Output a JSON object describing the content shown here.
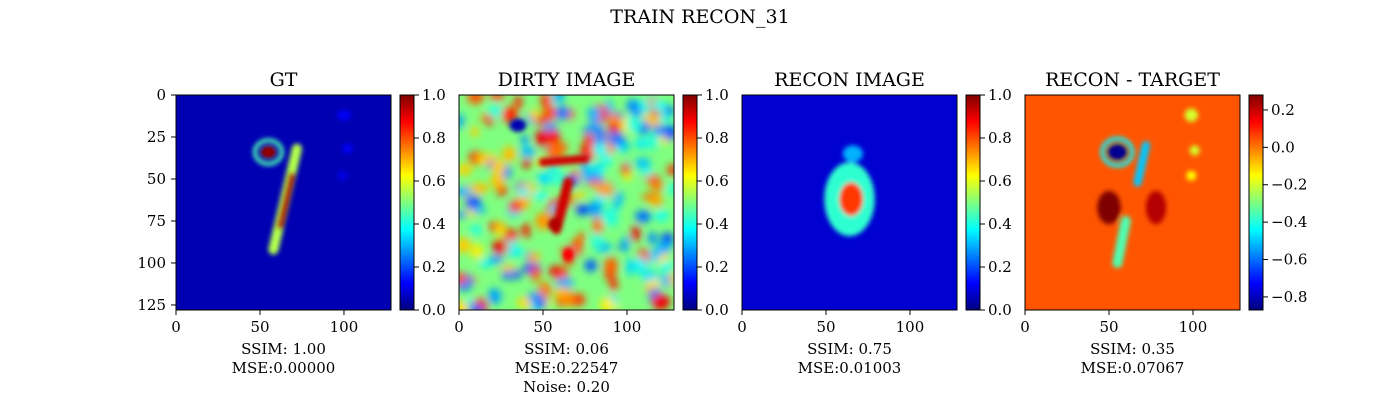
{
  "suptitle": "TRAIN RECON_31",
  "colormap": "jet",
  "jet_stops": [
    "#00007f",
    "#0000ff",
    "#007fff",
    "#00ffff",
    "#7fff7f",
    "#ffff00",
    "#ff7f00",
    "#ff0000",
    "#7f0000"
  ],
  "chart_data": [
    {
      "type": "heatmap",
      "title": "GT",
      "image_shape": [
        128,
        128
      ],
      "xlim": [
        0,
        128
      ],
      "ylim": [
        128,
        0
      ],
      "xticks": [
        0,
        50,
        100
      ],
      "yticks": [
        0,
        25,
        50,
        75,
        100,
        125
      ],
      "show_yticks": true,
      "colorbar": {
        "min": 0.0,
        "max": 1.0,
        "ticks": [
          "0.0",
          "0.2",
          "0.4",
          "0.6",
          "0.8",
          "1.0"
        ],
        "tick_values": [
          0,
          0.2,
          0.4,
          0.6,
          0.8,
          1.0
        ]
      },
      "background_value": 0.05,
      "features": [
        {
          "kind": "blob",
          "cx": 55,
          "cy": 34,
          "rx": 4.5,
          "ry": 3.5,
          "value": 0.98
        },
        {
          "kind": "ring",
          "cx": 55,
          "cy": 34,
          "rx": 8,
          "ry": 7,
          "value": 0.45
        },
        {
          "kind": "stroke",
          "x1": 72,
          "y1": 32,
          "x2": 58,
          "y2": 92,
          "width": 6,
          "value": 0.55
        },
        {
          "kind": "stroke",
          "x1": 69,
          "y1": 48,
          "x2": 62,
          "y2": 78,
          "width": 4,
          "value": 0.95
        },
        {
          "kind": "blob",
          "cx": 100,
          "cy": 12,
          "rx": 4,
          "ry": 3,
          "value": 0.12
        },
        {
          "kind": "blob",
          "cx": 102,
          "cy": 32,
          "rx": 3,
          "ry": 3,
          "value": 0.12
        },
        {
          "kind": "blob",
          "cx": 99,
          "cy": 48,
          "rx": 3,
          "ry": 3,
          "value": 0.1
        }
      ],
      "caption": [
        "SSIM: 1.00",
        "MSE:0.00000"
      ]
    },
    {
      "type": "heatmap",
      "title": "DIRTY IMAGE",
      "image_shape": [
        128,
        128
      ],
      "xlim": [
        0,
        128
      ],
      "ylim": [
        128,
        0
      ],
      "xticks": [
        0,
        50,
        100
      ],
      "show_yticks": false,
      "colorbar": {
        "min": 0.0,
        "max": 1.0,
        "ticks": [
          "0.0",
          "0.2",
          "0.4",
          "0.6",
          "0.8",
          "1.0"
        ],
        "tick_values": [
          0,
          0.2,
          0.4,
          0.6,
          0.8,
          1.0
        ]
      },
      "background_value": 0.5,
      "noise": true,
      "features": [
        {
          "kind": "stroke",
          "x1": 50,
          "y1": 40,
          "x2": 75,
          "y2": 38,
          "width": 5,
          "value": 0.92
        },
        {
          "kind": "stroke",
          "x1": 65,
          "y1": 52,
          "x2": 58,
          "y2": 80,
          "width": 6,
          "value": 0.92
        },
        {
          "kind": "blob",
          "cx": 57,
          "cy": 77,
          "rx": 4,
          "ry": 4,
          "value": 0.95
        },
        {
          "kind": "blob",
          "cx": 65,
          "cy": 95,
          "rx": 3,
          "ry": 4,
          "value": 0.88
        },
        {
          "kind": "blob",
          "cx": 35,
          "cy": 18,
          "rx": 5,
          "ry": 4,
          "value": 0.05
        }
      ],
      "caption": [
        "SSIM: 0.06",
        "MSE:0.22547",
        "Noise: 0.20"
      ]
    },
    {
      "type": "heatmap",
      "title": "RECON IMAGE",
      "image_shape": [
        128,
        128
      ],
      "xlim": [
        0,
        128
      ],
      "ylim": [
        128,
        0
      ],
      "xticks": [
        0,
        50,
        100
      ],
      "show_yticks": false,
      "colorbar": {
        "min": 0.0,
        "max": 1.0,
        "ticks": [
          "0.0",
          "0.2",
          "0.4",
          "0.6",
          "0.8",
          "1.0"
        ],
        "tick_values": [
          0,
          0.2,
          0.4,
          0.6,
          0.8,
          1.0
        ]
      },
      "background_value": 0.08,
      "features": [
        {
          "kind": "blob",
          "cx": 64,
          "cy": 62,
          "rx": 15,
          "ry": 22,
          "value": 0.42
        },
        {
          "kind": "blob",
          "cx": 65,
          "cy": 62,
          "rx": 7,
          "ry": 10,
          "value": 0.82
        },
        {
          "kind": "blob",
          "cx": 66,
          "cy": 35,
          "rx": 6,
          "ry": 5,
          "value": 0.3
        }
      ],
      "caption": [
        "SSIM: 0.75",
        "MSE:0.01003"
      ]
    },
    {
      "type": "heatmap",
      "title": "RECON - TARGET",
      "image_shape": [
        128,
        128
      ],
      "xlim": [
        0,
        128
      ],
      "ylim": [
        128,
        0
      ],
      "xticks": [
        0,
        50,
        100
      ],
      "show_yticks": false,
      "colorbar": {
        "min": -0.87,
        "max": 0.28,
        "ticks": [
          "0.2",
          "0.0",
          "−0.2",
          "−0.4",
          "−0.6",
          "−0.8"
        ],
        "tick_values": [
          0.2,
          0.0,
          -0.2,
          -0.4,
          -0.6,
          -0.8
        ]
      },
      "background_value": 0.04,
      "features": [
        {
          "kind": "blob",
          "cx": 55,
          "cy": 34,
          "rx": 6,
          "ry": 5,
          "value": -0.85
        },
        {
          "kind": "ring",
          "cx": 55,
          "cy": 34,
          "rx": 9,
          "ry": 8,
          "value": -0.45
        },
        {
          "kind": "stroke",
          "x1": 72,
          "y1": 30,
          "x2": 67,
          "y2": 52,
          "width": 5,
          "value": -0.5
        },
        {
          "kind": "stroke",
          "x1": 60,
          "y1": 75,
          "x2": 55,
          "y2": 100,
          "width": 6,
          "value": -0.35
        },
        {
          "kind": "blob",
          "cx": 50,
          "cy": 67,
          "rx": 7,
          "ry": 10,
          "value": 0.28
        },
        {
          "kind": "blob",
          "cx": 78,
          "cy": 67,
          "rx": 6,
          "ry": 10,
          "value": 0.22
        },
        {
          "kind": "blob",
          "cx": 99,
          "cy": 12,
          "rx": 4,
          "ry": 4,
          "value": -0.2
        },
        {
          "kind": "blob",
          "cx": 101,
          "cy": 33,
          "rx": 3,
          "ry": 3,
          "value": -0.2
        },
        {
          "kind": "blob",
          "cx": 99,
          "cy": 48,
          "rx": 3,
          "ry": 3,
          "value": -0.15
        }
      ],
      "caption": [
        "SSIM: 0.35",
        "MSE:0.07067"
      ]
    }
  ]
}
